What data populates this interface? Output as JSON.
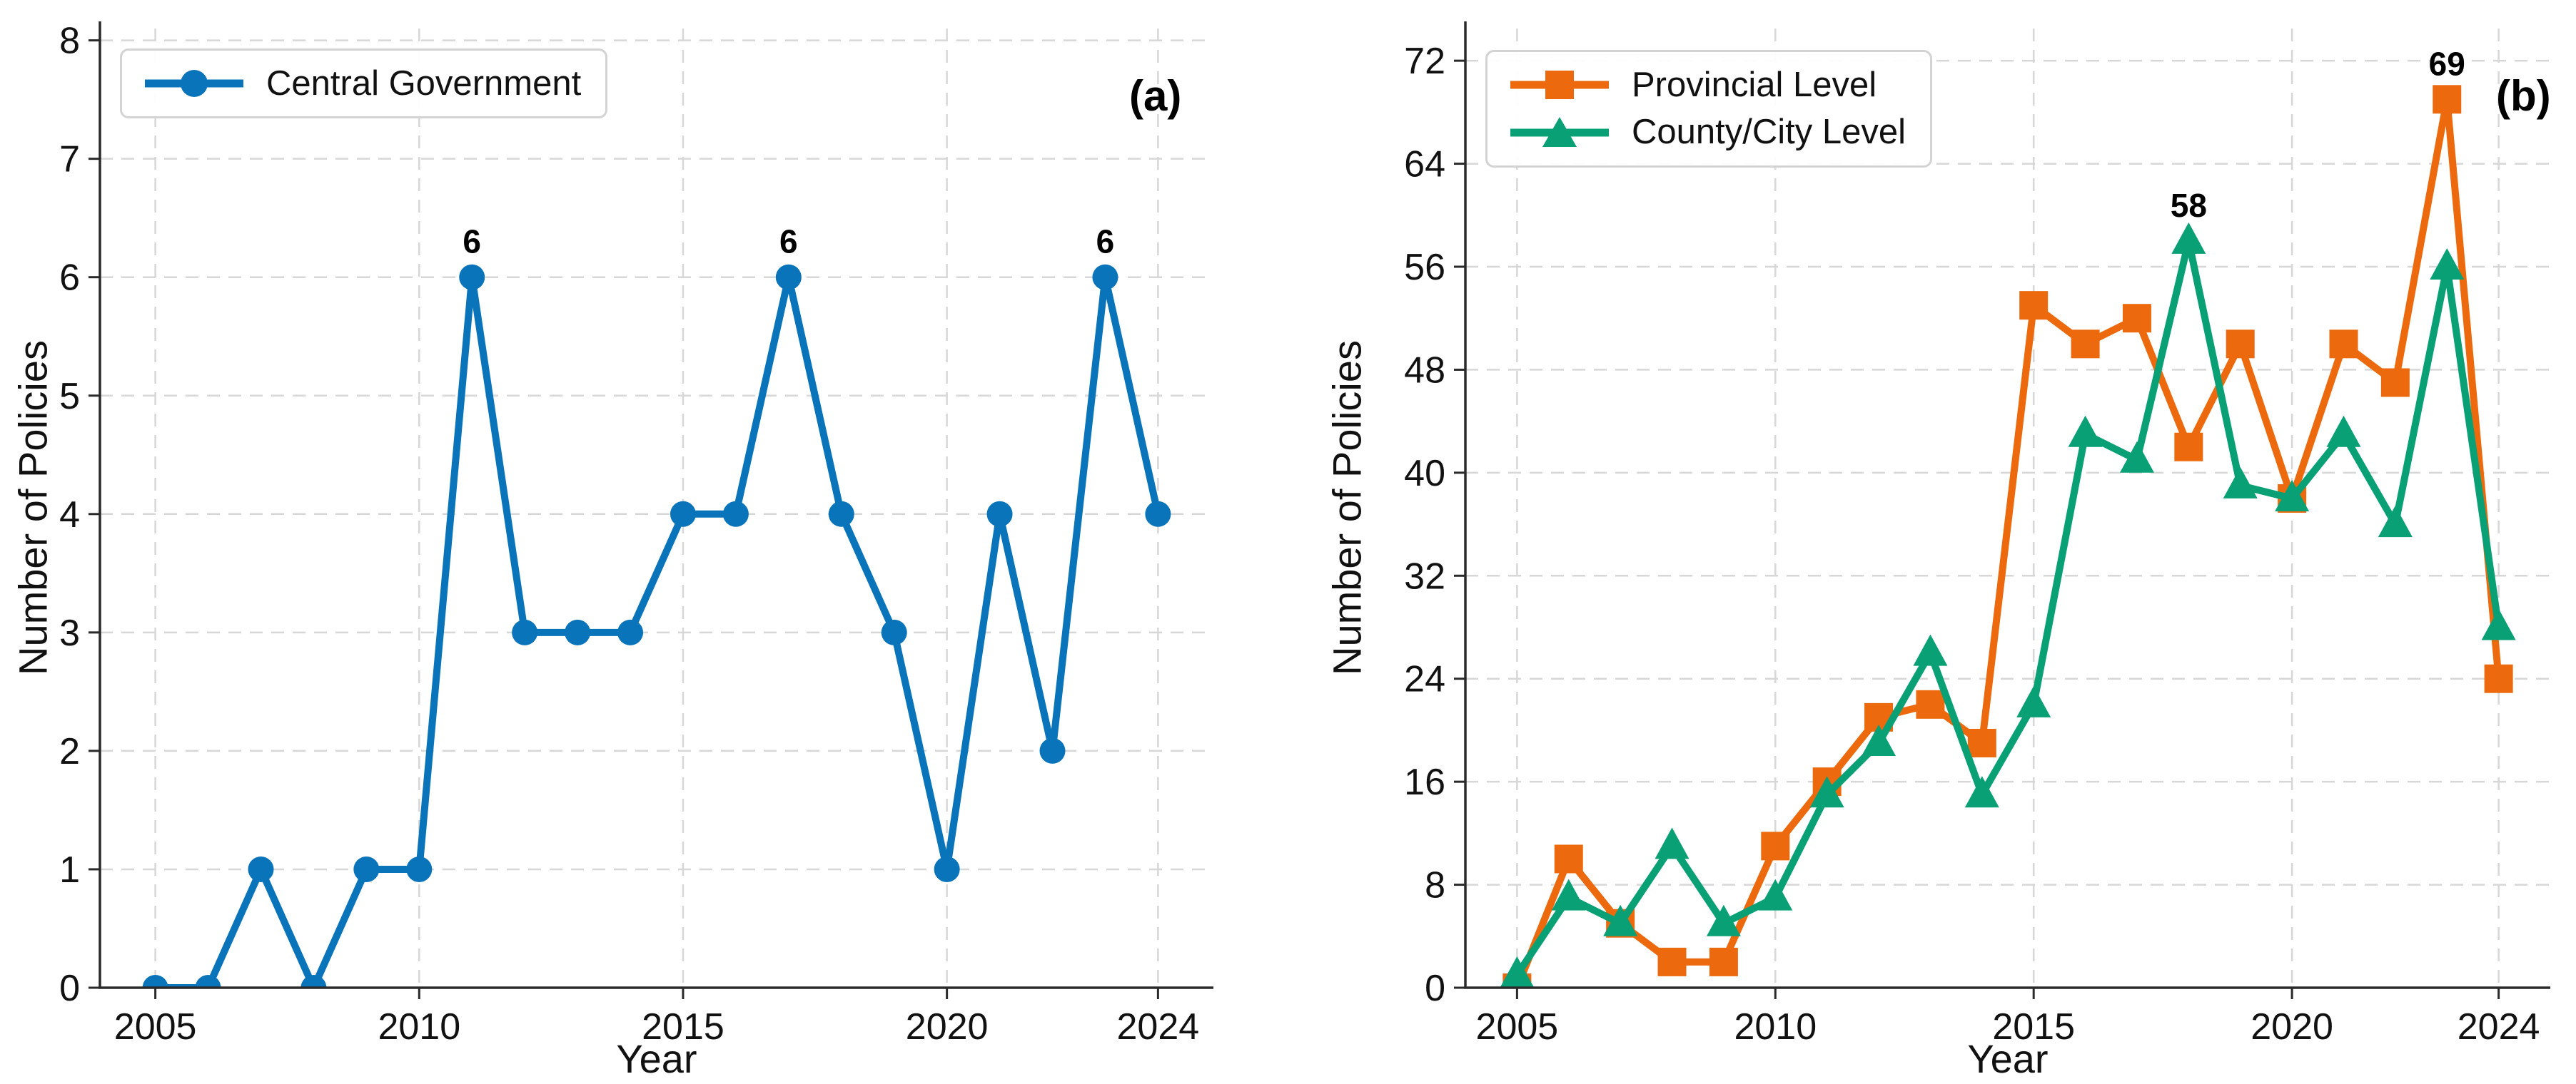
{
  "figure": {
    "background": "#ffffff",
    "xlabel": "Year",
    "ylabel": "Number of Policies"
  },
  "chart_data": [
    {
      "type": "line",
      "panel_tag": "(a)",
      "title": "",
      "xlabel": "Year",
      "ylabel": "Number of Policies",
      "x": [
        2005,
        2006,
        2007,
        2008,
        2009,
        2010,
        2011,
        2012,
        2013,
        2014,
        2015,
        2016,
        2017,
        2018,
        2019,
        2020,
        2021,
        2022,
        2023,
        2024
      ],
      "xticks": [
        2005,
        2010,
        2015,
        2020,
        2024
      ],
      "yticks": [
        0,
        1,
        2,
        3,
        4,
        5,
        6,
        7,
        8
      ],
      "xlim": [
        2003.95,
        2025.05
      ],
      "ylim": [
        0,
        8.1
      ],
      "grid": true,
      "legend_position": "upper-left",
      "series": [
        {
          "name": "Central Government",
          "color": "#0a74ba",
          "marker": "circle",
          "values": [
            0,
            0,
            1,
            0,
            1,
            1,
            6,
            3,
            3,
            3,
            4,
            4,
            6,
            4,
            3,
            1,
            4,
            2,
            6,
            4
          ]
        }
      ],
      "annotations": [
        {
          "x": 2011,
          "y": 6,
          "text": "6"
        },
        {
          "x": 2017,
          "y": 6,
          "text": "6"
        },
        {
          "x": 2023,
          "y": 6,
          "text": "6"
        }
      ]
    },
    {
      "type": "line",
      "panel_tag": "(b)",
      "title": "",
      "xlabel": "Year",
      "ylabel": "Number of Policies",
      "x": [
        2005,
        2006,
        2007,
        2008,
        2009,
        2010,
        2011,
        2012,
        2013,
        2014,
        2015,
        2016,
        2017,
        2018,
        2019,
        2020,
        2021,
        2022,
        2023,
        2024
      ],
      "xticks": [
        2005,
        2010,
        2015,
        2020,
        2024
      ],
      "yticks": [
        0,
        8,
        16,
        24,
        32,
        40,
        48,
        56,
        64,
        72
      ],
      "xlim": [
        2004.0,
        2025.0
      ],
      "ylim": [
        0,
        74.5
      ],
      "grid": true,
      "legend_position": "upper-left",
      "series": [
        {
          "name": "Provincial Level",
          "color": "#ec6a0d",
          "marker": "square",
          "values": [
            0,
            10,
            5,
            2,
            2,
            11,
            16,
            21,
            22,
            19,
            53,
            50,
            52,
            42,
            50,
            38,
            50,
            47,
            69,
            24
          ]
        },
        {
          "name": "County/City Level",
          "color": "#0aa076",
          "marker": "triangle",
          "values": [
            1,
            7,
            5,
            11,
            5,
            7,
            15,
            19,
            26,
            15,
            22,
            43,
            41,
            58,
            39,
            38,
            43,
            36,
            56,
            28
          ]
        }
      ],
      "annotations": [
        {
          "x": 2018,
          "y": 58,
          "text": "58"
        },
        {
          "x": 2023,
          "y": 69,
          "text": "69"
        }
      ]
    }
  ]
}
